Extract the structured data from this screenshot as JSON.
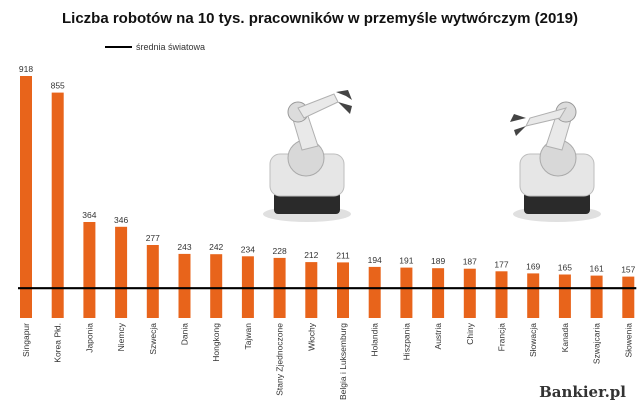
{
  "chart_data": {
    "type": "bar",
    "title": "Liczba robotów na 10 tys. pracowników w przemyśle wytwórczym (2019)",
    "categories": [
      "Singapur",
      "Korea Płd.",
      "Japonia",
      "Niemcy",
      "Szwecja",
      "Dania",
      "Hongkong",
      "Tajwan",
      "Stany Zjednoczone",
      "Włochy",
      "Belgia i Luksemburg",
      "Holandia",
      "Hiszpania",
      "Austria",
      "Chiny",
      "Francja",
      "Słowacja",
      "Kanada",
      "Szwajcaria",
      "Słowenia"
    ],
    "values": [
      918,
      855,
      364,
      346,
      277,
      243,
      242,
      234,
      228,
      212,
      211,
      194,
      191,
      189,
      187,
      177,
      169,
      165,
      161,
      157
    ],
    "reference_line": {
      "label": "średnia światowa",
      "value": 113
    },
    "ylim": [
      0,
      918
    ],
    "grid": false,
    "legend": "top-left",
    "colors": {
      "bar": "#e8641b",
      "reference_line": "#000000",
      "text": "#333333"
    }
  },
  "watermark": "Bankier.pl"
}
